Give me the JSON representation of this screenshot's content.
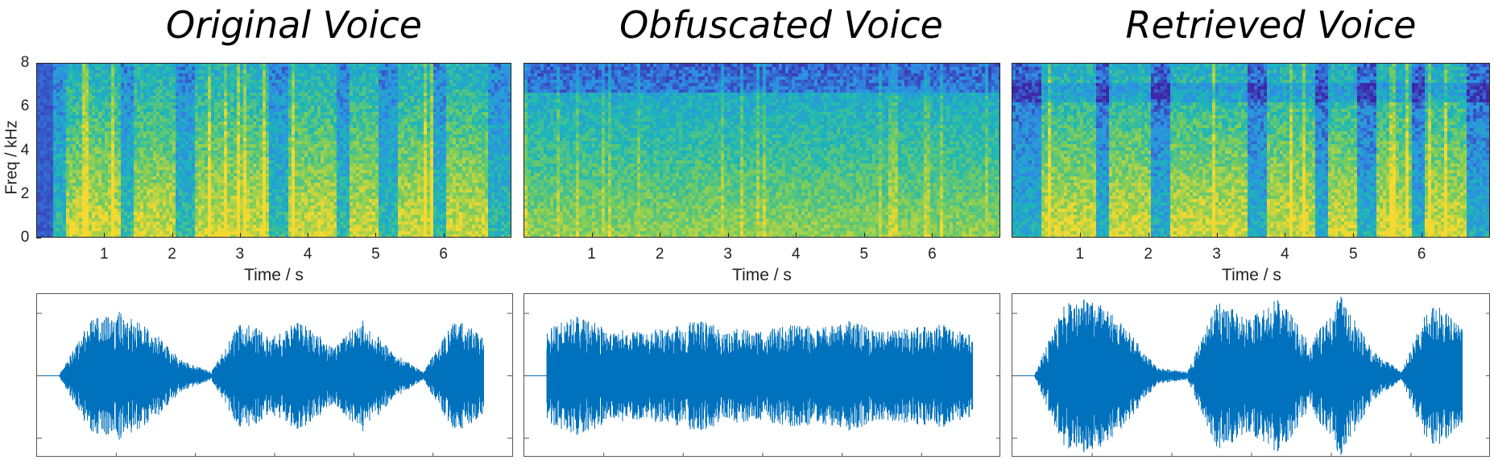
{
  "chart_data": [
    {
      "type": "heatmap",
      "title": "Original Voice",
      "xlabel": "Time / s",
      "ylabel": "Freq / kHz",
      "xlim": [
        0,
        7
      ],
      "ylim": [
        0,
        8
      ],
      "xticks": [
        "1",
        "2",
        "3",
        "4",
        "5",
        "6"
      ],
      "yticks": [
        "0",
        "2",
        "4",
        "6",
        "8"
      ],
      "voiced_segments_s": [
        [
          0.4,
          1.2
        ],
        [
          1.4,
          2.0
        ],
        [
          2.3,
          3.4
        ],
        [
          3.7,
          4.4
        ],
        [
          4.6,
          5.0
        ],
        [
          5.3,
          5.8
        ],
        [
          6.0,
          6.6
        ]
      ],
      "waveform": {
        "envelope_fraction": [
          0.02,
          0.7,
          0.8,
          0.6,
          0.2,
          0.05,
          0.7,
          0.5,
          0.7,
          0.35,
          0.7,
          0.3,
          0.05,
          0.7,
          0.55
        ]
      }
    },
    {
      "type": "heatmap",
      "title": "Obfuscated Voice",
      "xlabel": "Time / s",
      "ylabel": "",
      "xlim": [
        0,
        7
      ],
      "ylim": [
        0,
        8
      ],
      "xticks": [
        "1",
        "2",
        "3",
        "4",
        "5",
        "6"
      ],
      "yticks": [],
      "voiced_segments_s": [
        [
          0.0,
          7.0
        ]
      ],
      "waveform": {
        "envelope_fraction": [
          0.6,
          0.75,
          0.6,
          0.55,
          0.6,
          0.7,
          0.6,
          0.55,
          0.65,
          0.6,
          0.7,
          0.55,
          0.6,
          0.65,
          0.5
        ]
      }
    },
    {
      "type": "heatmap",
      "title": "Retrieved Voice",
      "xlabel": "Time / s",
      "ylabel": "",
      "xlim": [
        0,
        7
      ],
      "ylim": [
        0,
        8
      ],
      "xticks": [
        "1",
        "2",
        "3",
        "4",
        "5",
        "6"
      ],
      "yticks": [],
      "voiced_segments_s": [
        [
          0.4,
          1.2
        ],
        [
          1.4,
          2.0
        ],
        [
          2.3,
          3.4
        ],
        [
          3.7,
          4.4
        ],
        [
          4.6,
          5.0
        ],
        [
          5.3,
          5.8
        ],
        [
          6.0,
          6.6
        ]
      ],
      "waveform": {
        "envelope_fraction": [
          0.02,
          0.95,
          1.0,
          0.6,
          0.1,
          0.05,
          0.95,
          0.7,
          1.0,
          0.4,
          1.0,
          0.35,
          0.05,
          1.0,
          0.6
        ]
      }
    }
  ],
  "colors": {
    "spec_low": "#3e26a8",
    "spec_mid_low": "#2f8ce6",
    "spec_mid": "#1cb7b8",
    "spec_mid_high": "#7ccd5a",
    "spec_high": "#f5d930",
    "waveform": "#0072bd"
  }
}
